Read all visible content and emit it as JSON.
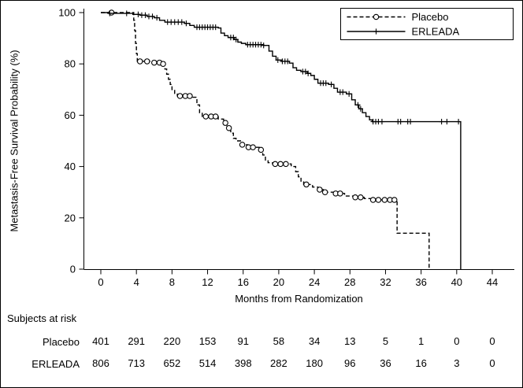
{
  "figure": {
    "background": "#ffffff",
    "border_color": "#000000",
    "line_color": "#000000"
  },
  "chart_data": {
    "type": "line",
    "subtype": "kaplan-meier-step",
    "title": "",
    "xlabel": "Months from Randomization",
    "ylabel": "Metastasis-Free Survival Probability (%)",
    "xlim": [
      0,
      44
    ],
    "ylim": [
      0,
      100
    ],
    "xticks": [
      0,
      4,
      8,
      12,
      16,
      20,
      24,
      28,
      32,
      36,
      40,
      44
    ],
    "yticks": [
      0,
      20,
      40,
      60,
      80,
      100
    ],
    "grid": false,
    "legend_position": "top-right",
    "series": [
      {
        "name": "Placebo",
        "line_style": "dashed",
        "marker": "circle",
        "color": "#000000",
        "steps": [
          [
            0,
            100
          ],
          [
            3.6,
            100
          ],
          [
            3.7,
            97
          ],
          [
            3.8,
            93
          ],
          [
            3.9,
            88
          ],
          [
            4.0,
            84
          ],
          [
            4.1,
            81
          ],
          [
            5.5,
            80.5
          ],
          [
            6.8,
            80
          ],
          [
            7.2,
            78
          ],
          [
            7.4,
            76
          ],
          [
            7.6,
            74
          ],
          [
            7.8,
            72
          ],
          [
            8.0,
            70
          ],
          [
            8.3,
            68.5
          ],
          [
            8.6,
            67.5
          ],
          [
            10.3,
            67
          ],
          [
            10.8,
            64
          ],
          [
            11.1,
            61
          ],
          [
            11.4,
            59.5
          ],
          [
            13.2,
            58.5
          ],
          [
            13.8,
            57
          ],
          [
            14.2,
            55
          ],
          [
            14.6,
            53
          ],
          [
            14.9,
            51
          ],
          [
            15.2,
            50
          ],
          [
            15.8,
            48.5
          ],
          [
            16.5,
            47.5
          ],
          [
            17.8,
            46.5
          ],
          [
            18.2,
            44.5
          ],
          [
            18.5,
            42.5
          ],
          [
            18.8,
            41.5
          ],
          [
            19.3,
            41
          ],
          [
            21.4,
            40
          ],
          [
            21.9,
            38
          ],
          [
            22.2,
            36
          ],
          [
            22.5,
            34
          ],
          [
            22.8,
            33
          ],
          [
            23.8,
            32
          ],
          [
            24.4,
            31
          ],
          [
            25.0,
            30
          ],
          [
            26.2,
            29.5
          ],
          [
            27.4,
            28.5
          ],
          [
            28.4,
            28
          ],
          [
            29.6,
            27.5
          ],
          [
            30.5,
            27
          ],
          [
            33.2,
            27
          ],
          [
            33.3,
            14
          ],
          [
            36.8,
            14
          ],
          [
            36.9,
            0
          ]
        ],
        "censor_times": [
          1.2,
          4.4,
          5.2,
          6.0,
          6.6,
          7.0,
          8.9,
          9.5,
          10.0,
          11.8,
          12.4,
          12.9,
          14.0,
          14.4,
          15.9,
          16.6,
          17.1,
          18.0,
          19.6,
          20.2,
          20.8,
          23.1,
          24.6,
          25.2,
          26.4,
          26.9,
          28.6,
          29.2,
          30.6,
          31.2,
          31.9,
          32.5,
          33.0
        ]
      },
      {
        "name": "ERLEADA",
        "line_style": "solid",
        "marker": "plus",
        "color": "#000000",
        "steps": [
          [
            0,
            100
          ],
          [
            0.9,
            99.7
          ],
          [
            3.6,
            99.3
          ],
          [
            4.4,
            99
          ],
          [
            5.2,
            98.5
          ],
          [
            6.0,
            98
          ],
          [
            6.6,
            97
          ],
          [
            7.2,
            96.3
          ],
          [
            9.4,
            95.8
          ],
          [
            10.0,
            95
          ],
          [
            10.5,
            94.3
          ],
          [
            13.2,
            94
          ],
          [
            13.5,
            92
          ],
          [
            13.9,
            91
          ],
          [
            14.3,
            90.3
          ],
          [
            15.0,
            89.5
          ],
          [
            15.4,
            88.5
          ],
          [
            15.8,
            88
          ],
          [
            16.3,
            87.5
          ],
          [
            18.3,
            87.2
          ],
          [
            18.9,
            85
          ],
          [
            19.3,
            83
          ],
          [
            19.7,
            81.5
          ],
          [
            20.3,
            81
          ],
          [
            21.2,
            80.3
          ],
          [
            21.6,
            78.5
          ],
          [
            22.0,
            77.5
          ],
          [
            22.5,
            77
          ],
          [
            23.2,
            76.3
          ],
          [
            23.6,
            75.5
          ],
          [
            24.0,
            74
          ],
          [
            24.4,
            72.5
          ],
          [
            25.6,
            72
          ],
          [
            26.2,
            70.5
          ],
          [
            26.6,
            69
          ],
          [
            27.6,
            68.3
          ],
          [
            28.2,
            66
          ],
          [
            28.6,
            64
          ],
          [
            29.0,
            62.5
          ],
          [
            29.4,
            61
          ],
          [
            29.8,
            59.5
          ],
          [
            30.2,
            58.2
          ],
          [
            30.5,
            57.5
          ],
          [
            40.4,
            57.5
          ],
          [
            40.45,
            0
          ]
        ],
        "censor_times": [
          1.0,
          2.9,
          4.2,
          4.6,
          5.0,
          5.4,
          5.8,
          6.3,
          7.5,
          7.9,
          8.3,
          8.7,
          9.1,
          9.6,
          10.8,
          11.1,
          11.4,
          11.7,
          12.0,
          12.3,
          12.6,
          12.9,
          14.6,
          14.9,
          15.2,
          16.5,
          16.8,
          17.1,
          17.4,
          17.7,
          18.0,
          18.3,
          19.9,
          20.4,
          20.7,
          21.0,
          22.7,
          23.0,
          23.3,
          24.7,
          25.0,
          25.3,
          25.9,
          26.9,
          27.2,
          27.9,
          28.9,
          29.2,
          30.6,
          30.9,
          31.2,
          31.6,
          33.4,
          33.7,
          34.5,
          34.8,
          38.3,
          38.9,
          40.2
        ]
      }
    ]
  },
  "legend": {
    "entries": [
      "Placebo",
      "ERLEADA"
    ]
  },
  "risk_table": {
    "title": "Subjects at risk",
    "times": [
      0,
      4,
      8,
      12,
      16,
      20,
      24,
      28,
      32,
      36,
      40,
      44
    ],
    "rows": [
      {
        "label": "Placebo",
        "counts": [
          "401",
          "291",
          "220",
          "153",
          "91",
          "58",
          "34",
          "13",
          "5",
          "1",
          "0",
          "0"
        ]
      },
      {
        "label": "ERLEADA",
        "counts": [
          "806",
          "713",
          "652",
          "514",
          "398",
          "282",
          "180",
          "96",
          "36",
          "16",
          "3",
          "0"
        ]
      }
    ]
  }
}
